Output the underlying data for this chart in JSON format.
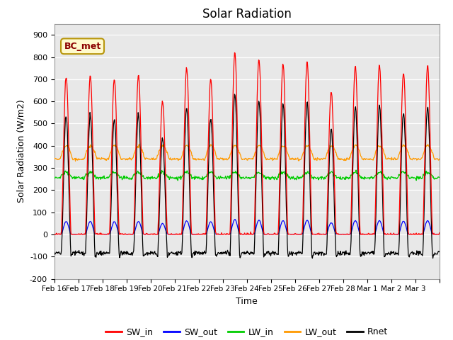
{
  "title": "Solar Radiation",
  "xlabel": "Time",
  "ylabel": "Solar Radiation (W/m2)",
  "ylim": [
    -200,
    950
  ],
  "yticks": [
    -200,
    -100,
    0,
    100,
    200,
    300,
    400,
    500,
    600,
    700,
    800,
    900
  ],
  "annotation_label": "BC_met",
  "series_colors": {
    "SW_in": "#ff0000",
    "SW_out": "#0000ff",
    "LW_in": "#00cc00",
    "LW_out": "#ff9900",
    "Rnet": "#000000"
  },
  "bg_color": "#e8e8e8",
  "n_days": 16,
  "tick_labels": [
    "Feb 16",
    "Feb 17",
    "Feb 18",
    "Feb 19",
    "Feb 20",
    "Feb 21",
    "Feb 22",
    "Feb 23",
    "Feb 24",
    "Feb 25",
    "Feb 26",
    "Feb 27",
    "Feb 28",
    "Mar 1",
    "Mar 2",
    "Mar 3"
  ],
  "sw_in_peaks": [
    710,
    715,
    705,
    715,
    600,
    750,
    700,
    820,
    790,
    770,
    780,
    645,
    760,
    765,
    730,
    760
  ],
  "lw_in_night": 255,
  "lw_out_night": 340,
  "lw_in_day_bump": 25,
  "lw_out_day_bump": 60
}
